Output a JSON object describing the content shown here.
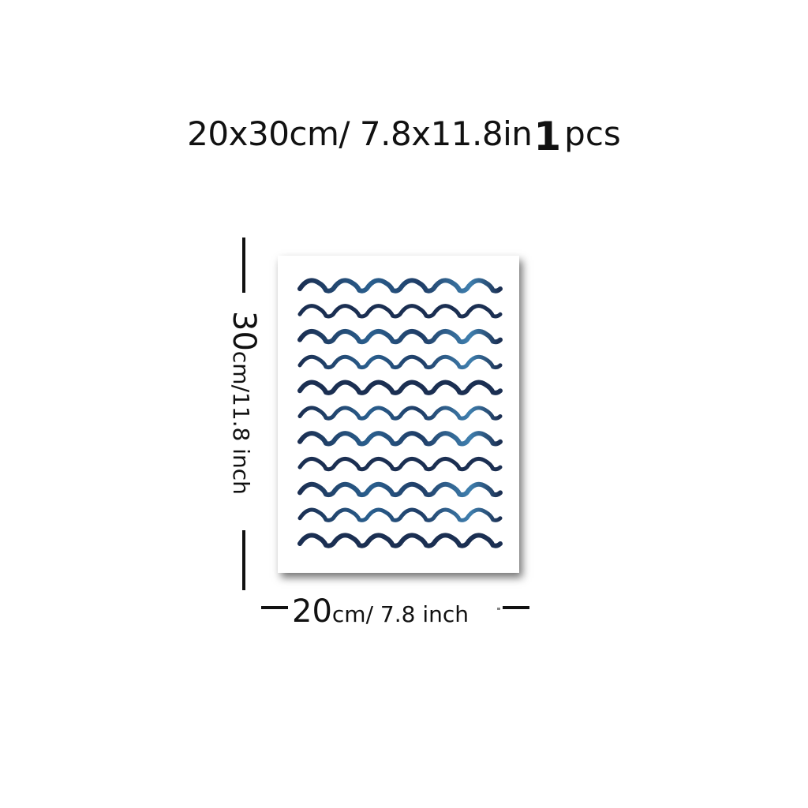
{
  "title": {
    "size_spec": "20x30cm/ 7.8x11.8in",
    "quantity": "1",
    "unit": "pcs"
  },
  "poster": {
    "pattern": "blue watercolor scalloped waves",
    "wave_rows": 11,
    "colors": {
      "dark_blue": "#1b2f52",
      "mid_blue": "#2a5f8e",
      "light_blue": "#3f7fae"
    }
  },
  "dimensions": {
    "height": {
      "value": "30",
      "unit_text": "cm/11.8 inch"
    },
    "width": {
      "value": "20",
      "unit_text": "cm/ 7.8 inch"
    }
  }
}
